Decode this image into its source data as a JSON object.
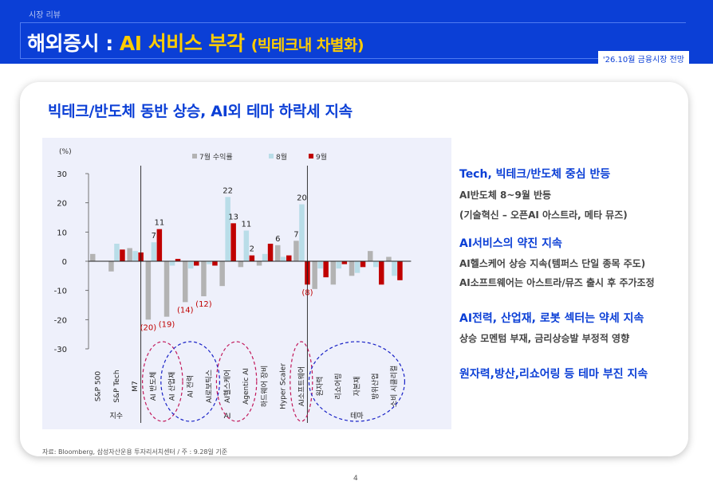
{
  "header": {
    "crumb": "시장 리뷰",
    "title_main": "해외증시 : ",
    "title_highlight": "AI 서비스 부각",
    "title_sub": "(빅테크내 차별화)",
    "date_tag": "'26.10월 금융시장 전망",
    "bg_color": "#0b3fd6",
    "accent_color": "#ffcc00"
  },
  "card_title": "빅테크/반도체 동반 상승, AI외 테마 하락세 지속",
  "chart_data": {
    "type": "bar",
    "unit_label": "(%)",
    "ylim": [
      -30,
      30
    ],
    "yticks": [
      30,
      20,
      10,
      0,
      -10,
      -20,
      -30
    ],
    "categories": [
      "S&P 500",
      "S&P Tech",
      "M7",
      "AI 반도체",
      "AI 산업재",
      "AI 전력",
      "AI로보틱스",
      "AI헬스케어",
      "Agentic AI",
      "하드웨어 장비",
      "Hyper Scaler",
      "AI소프트웨어",
      "원자력",
      "리쇼어링",
      "자본재",
      "방위산업",
      "소비 시클리컬"
    ],
    "groups": [
      {
        "label": "지수",
        "start": 0,
        "end": 2
      },
      {
        "label": "AI",
        "start": 3,
        "end": 11
      },
      {
        "label": "테마",
        "start": 12,
        "end": 16
      }
    ],
    "series": [
      {
        "name": "7월 수익률",
        "color": "#b3b3b3",
        "values": [
          2.5,
          -3.5,
          4.5,
          -20,
          -19,
          -14,
          -12,
          -8.5,
          -2,
          -1.5,
          5.5,
          7,
          -9.5,
          -8,
          -5,
          3.5,
          1.5
        ]
      },
      {
        "name": "8월",
        "color": "#b9dde8",
        "values": [
          0,
          6,
          3.5,
          6.5,
          -1.5,
          -2.5,
          -1,
          22,
          10.5,
          2.5,
          1.5,
          19.5,
          -2.5,
          -2.5,
          -4,
          -2,
          -5
        ]
      },
      {
        "name": "9월",
        "color": "#c00000",
        "values": [
          0,
          4,
          3,
          11,
          0.8,
          -1.5,
          -1.5,
          13,
          2,
          6,
          2,
          -8,
          -5.5,
          -1,
          -2,
          -8,
          -6.5
        ]
      }
    ],
    "value_labels": [
      {
        "text": "7",
        "category": 3,
        "series": 1
      },
      {
        "text": "11",
        "category": 3,
        "series": 2
      },
      {
        "text": "(20)",
        "category": 3,
        "series": 0
      },
      {
        "text": "(19)",
        "category": 4,
        "series": 0
      },
      {
        "text": "(14)",
        "category": 5,
        "series": 0
      },
      {
        "text": "(12)",
        "category": 6,
        "series": 0
      },
      {
        "text": "22",
        "category": 7,
        "series": 1
      },
      {
        "text": "13",
        "category": 7,
        "series": 2
      },
      {
        "text": "11",
        "category": 8,
        "series": 1
      },
      {
        "text": "2",
        "category": 8,
        "series": 2
      },
      {
        "text": "6",
        "category": 10,
        "series": 0
      },
      {
        "text": "7",
        "category": 11,
        "series": 0
      },
      {
        "text": "20",
        "category": 11,
        "series": 1
      },
      {
        "text": "(8)",
        "category": 11,
        "series": 2
      }
    ],
    "circled_categories": [
      {
        "from": 3,
        "to": 4,
        "color": "#c2185b"
      },
      {
        "from": 4,
        "to": 6,
        "color": "#1a23c7"
      },
      {
        "from": 7,
        "to": 8,
        "color": "#c2185b"
      },
      {
        "from": 11,
        "to": 11,
        "color": "#c2185b"
      },
      {
        "from": 12,
        "to": 16,
        "color": "#1a23c7"
      }
    ],
    "plot_bg": "#eef0fb",
    "red_label_color": "#c00000"
  },
  "commentary": [
    {
      "heading": "Tech, 빅테크/반도체 중심 반등",
      "lines": [
        "AI반도체 8~9월 반등",
        "(기술혁신 – 오픈AI 아스트라, 메타 뮤즈)"
      ]
    },
    {
      "heading": "AI서비스의 약진 지속",
      "lines": [
        "AI헬스케어 상승 지속(템퍼스 단일 종목 주도)",
        "AI소프트웨어는 아스트라/뮤즈 출시 후 주가조정"
      ]
    },
    {
      "heading": "AI전력, 산업재, 로봇 섹터는 약세 지속",
      "lines": [
        "상승 모멘텀 부재, 금리상승발 부정적 영향"
      ]
    },
    {
      "heading": "원자력,방산,리쇼어링 등 테마 부진 지속",
      "lines": []
    }
  ],
  "source": "자료: Bloomberg, 삼성자산운용 투자리서치센터 / 주 : 9.28일 기준",
  "page_number": "4"
}
